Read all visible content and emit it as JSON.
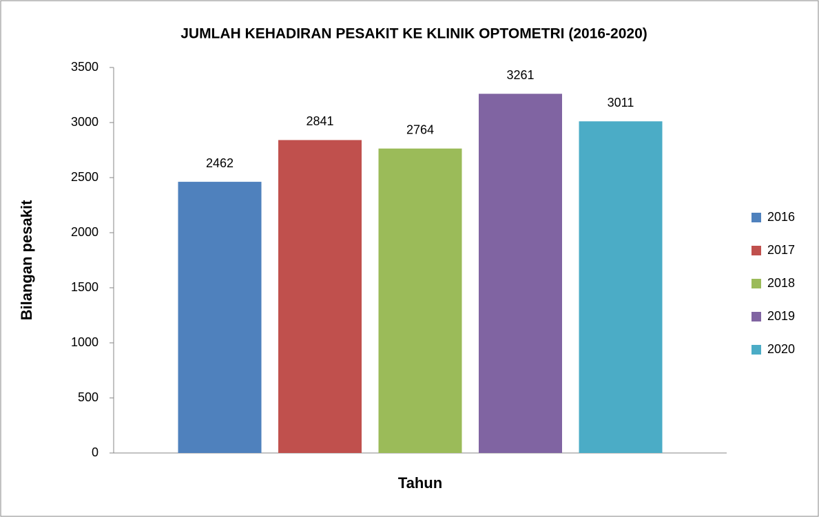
{
  "chart_data": {
    "type": "bar",
    "title": "JUMLAH KEHADIRAN PESAKIT KE KLINIK OPTOMETRI (2016-2020)",
    "x_label": "Tahun",
    "y_label": "Bilangan pesakit",
    "categories": [
      null
    ],
    "series": [
      {
        "name": "2016",
        "color": "#4f81bd",
        "values": [
          2462
        ]
      },
      {
        "name": "2017",
        "color": "#c0504d",
        "values": [
          2841
        ]
      },
      {
        "name": "2018",
        "color": "#9bbb59",
        "values": [
          2764
        ]
      },
      {
        "name": "2019",
        "color": "#8064a2",
        "values": [
          3261
        ]
      },
      {
        "name": "2020",
        "color": "#4bacc6",
        "values": [
          3011
        ]
      }
    ],
    "ylim": [
      0,
      3500
    ],
    "yticks": [
      0,
      500,
      1000,
      1500,
      2000,
      2500,
      3000,
      3500
    ],
    "grid": false,
    "legend": "right"
  }
}
